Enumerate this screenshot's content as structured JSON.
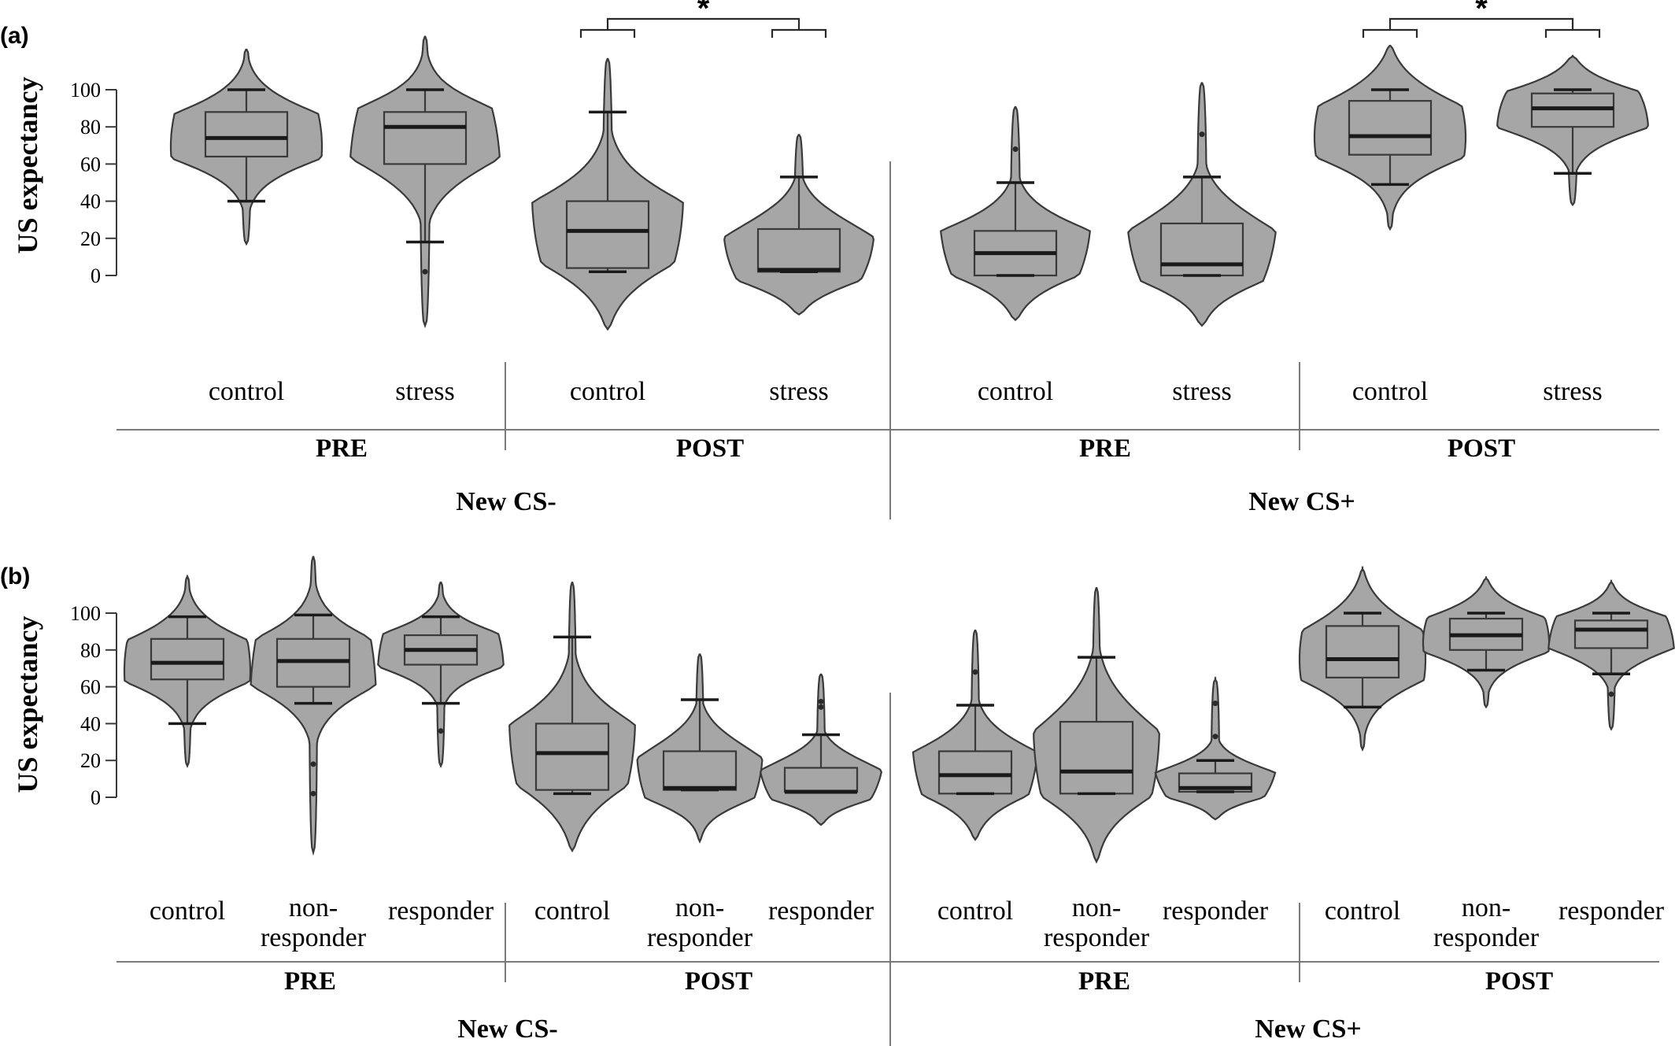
{
  "chart_data": [
    {
      "type": "violin",
      "panel_label": "(a)",
      "ylabel": "US expectancy",
      "yticks": [
        0,
        20,
        40,
        60,
        80,
        100
      ],
      "groups": [
        {
          "stimulus": "New CS-",
          "phase": "PRE",
          "condition": "control",
          "min": 40,
          "q1": 64,
          "median": 74,
          "q3": 88,
          "max": 100,
          "vmin": 17,
          "vmax": 122,
          "outliers": []
        },
        {
          "stimulus": "New CS-",
          "phase": "PRE",
          "condition": "stress",
          "min": 18,
          "q1": 60,
          "median": 80,
          "q3": 88,
          "max": 100,
          "vmin": -27,
          "vmax": 129,
          "outliers": [
            2
          ]
        },
        {
          "stimulus": "New CS-",
          "phase": "POST",
          "condition": "control",
          "min": 2,
          "q1": 4,
          "median": 24,
          "q3": 40,
          "max": 88,
          "vmin": -29,
          "vmax": 117,
          "outliers": []
        },
        {
          "stimulus": "New CS-",
          "phase": "POST",
          "condition": "stress",
          "min": 2,
          "q1": 2,
          "median": 3,
          "q3": 25,
          "max": 53,
          "vmin": -21,
          "vmax": 76,
          "outliers": []
        },
        {
          "stimulus": "New CS+",
          "phase": "PRE",
          "condition": "control",
          "min": 0,
          "q1": 0,
          "median": 12,
          "q3": 24,
          "max": 50,
          "vmin": -24,
          "vmax": 91,
          "outliers": [
            68
          ]
        },
        {
          "stimulus": "New CS+",
          "phase": "PRE",
          "condition": "stress",
          "min": 0,
          "q1": 0,
          "median": 6,
          "q3": 28,
          "max": 53,
          "vmin": -27,
          "vmax": 104,
          "outliers": [
            76
          ]
        },
        {
          "stimulus": "New CS+",
          "phase": "POST",
          "condition": "control",
          "min": 49,
          "q1": 65,
          "median": 75,
          "q3": 94,
          "max": 100,
          "vmin": 25,
          "vmax": 124,
          "outliers": []
        },
        {
          "stimulus": "New CS+",
          "phase": "POST",
          "condition": "stress",
          "min": 55,
          "q1": 80,
          "median": 90,
          "q3": 98,
          "max": 100,
          "vmin": 38,
          "vmax": 118,
          "outliers": []
        }
      ],
      "significance": [
        "*",
        "*"
      ]
    },
    {
      "type": "violin",
      "panel_label": "(b)",
      "ylabel": "US expectancy",
      "yticks": [
        0,
        20,
        40,
        60,
        80,
        100
      ],
      "groups": [
        {
          "stimulus": "New CS-",
          "phase": "PRE",
          "condition": "control",
          "min": 40,
          "q1": 64,
          "median": 73,
          "q3": 86,
          "max": 98,
          "vmin": 17,
          "vmax": 120,
          "outliers": []
        },
        {
          "stimulus": "New CS-",
          "phase": "PRE",
          "condition": "non-responder",
          "min": 51,
          "q1": 60,
          "median": 74,
          "q3": 86,
          "max": 99,
          "vmin": -30,
          "vmax": 131,
          "outliers": [
            18,
            2
          ]
        },
        {
          "stimulus": "New CS-",
          "phase": "PRE",
          "condition": "responder",
          "min": 51,
          "q1": 72,
          "median": 80,
          "q3": 88,
          "max": 98,
          "vmin": 17,
          "vmax": 117,
          "outliers": [
            36
          ]
        },
        {
          "stimulus": "New CS-",
          "phase": "POST",
          "condition": "control",
          "min": 2,
          "q1": 4,
          "median": 24,
          "q3": 40,
          "max": 87,
          "vmin": -29,
          "vmax": 117,
          "outliers": []
        },
        {
          "stimulus": "New CS-",
          "phase": "POST",
          "condition": "non-responder",
          "min": 4,
          "q1": 4,
          "median": 5,
          "q3": 25,
          "max": 53,
          "vmin": -24,
          "vmax": 78,
          "outliers": []
        },
        {
          "stimulus": "New CS-",
          "phase": "POST",
          "condition": "responder",
          "min": 3,
          "q1": 3,
          "median": 3,
          "q3": 16,
          "max": 34,
          "vmin": -15,
          "vmax": 67,
          "outliers": [
            49,
            52
          ]
        },
        {
          "stimulus": "New CS+",
          "phase": "PRE",
          "condition": "control",
          "min": 2,
          "q1": 2,
          "median": 12,
          "q3": 25,
          "max": 50,
          "vmin": -23,
          "vmax": 91,
          "outliers": [
            68
          ]
        },
        {
          "stimulus": "New CS+",
          "phase": "PRE",
          "condition": "non-responder",
          "min": 2,
          "q1": 2,
          "median": 14,
          "q3": 41,
          "max": 76,
          "vmin": -35,
          "vmax": 114,
          "outliers": []
        },
        {
          "stimulus": "New CS+",
          "phase": "PRE",
          "condition": "responder",
          "min": 3,
          "q1": 3,
          "median": 5,
          "q3": 13,
          "max": 20,
          "vmin": -12,
          "vmax": 64,
          "outliers": [
            51,
            33
          ]
        },
        {
          "stimulus": "New CS+",
          "phase": "POST",
          "condition": "control",
          "min": 49,
          "q1": 65,
          "median": 75,
          "q3": 93,
          "max": 100,
          "vmin": 26,
          "vmax": 124,
          "outliers": []
        },
        {
          "stimulus": "New CS+",
          "phase": "POST",
          "condition": "non-responder",
          "min": 69,
          "q1": 80,
          "median": 88,
          "q3": 97,
          "max": 100,
          "vmin": 49,
          "vmax": 119,
          "outliers": []
        },
        {
          "stimulus": "New CS+",
          "phase": "POST",
          "condition": "responder",
          "min": 67,
          "q1": 81,
          "median": 91,
          "q3": 96,
          "max": 100,
          "vmin": 37,
          "vmax": 117,
          "outliers": [
            56
          ]
        }
      ],
      "significance": []
    }
  ],
  "labels": {
    "a": {
      "conditions": [
        "control",
        "stress",
        "control",
        "stress",
        "control",
        "stress",
        "control",
        "stress"
      ],
      "phases": [
        "PRE",
        "POST",
        "PRE",
        "POST"
      ],
      "stimuli": [
        "New CS-",
        "New CS+"
      ]
    },
    "b": {
      "conditions": [
        "control",
        "non-\nresponder",
        "responder",
        "control",
        "non-\nresponder",
        "responder",
        "control",
        "non-\nresponder",
        "responder",
        "control",
        "non-\nresponder",
        "responder"
      ],
      "phases": [
        "PRE",
        "POST",
        "PRE",
        "POST"
      ],
      "stimuli": [
        "New CS-",
        "New CS+"
      ]
    }
  }
}
